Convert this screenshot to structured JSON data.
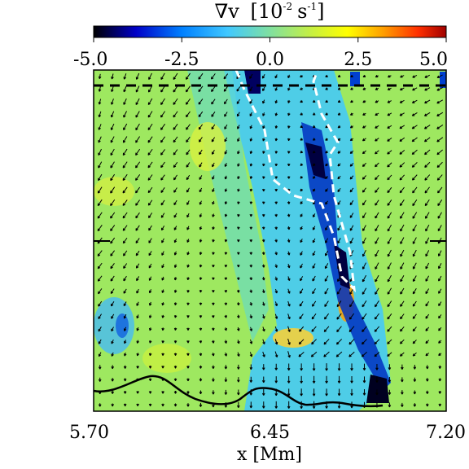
{
  "chart_data": {
    "type": "heatmap",
    "colorbar": {
      "title": "∇v",
      "unit_prefix": "10",
      "unit_exp": "-2",
      "unit_suffix": "s",
      "unit_suffix_exp": "-1",
      "range": [
        -5.0,
        5.0
      ],
      "ticks": [
        "-5.0",
        "-2.5",
        "0.0",
        "2.5",
        "5.0"
      ],
      "colormap": [
        "#000000",
        "#0000c8",
        "#0080ff",
        "#40c8ff",
        "#80e0a0",
        "#c8f040",
        "#ffff00",
        "#ffa000",
        "#ff3000",
        "#a00000"
      ]
    },
    "xaxis": {
      "label": "x [Mm]",
      "range": [
        5.7,
        7.2
      ],
      "ticks": [
        "5.70",
        "6.45",
        "7.20"
      ]
    },
    "field_background": "#9ee860",
    "vector_field": true,
    "contours": [
      "white-dashed",
      "black-solid"
    ]
  }
}
